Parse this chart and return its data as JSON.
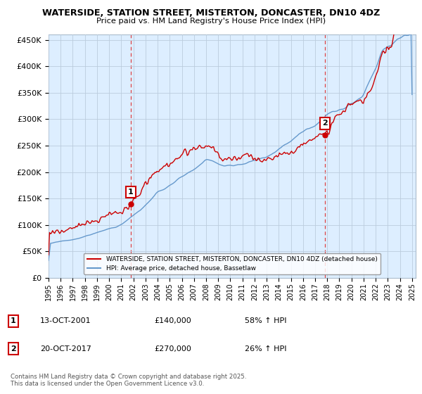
{
  "title1": "WATERSIDE, STATION STREET, MISTERTON, DONCASTER, DN10 4DZ",
  "title2": "Price paid vs. HM Land Registry's House Price Index (HPI)",
  "ylabel_ticks": [
    0,
    50000,
    100000,
    150000,
    200000,
    250000,
    300000,
    350000,
    400000,
    450000
  ],
  "ylim": [
    0,
    460000
  ],
  "x_start_year": 1995,
  "x_end_year": 2025,
  "sale1_year": 2001.79,
  "sale1_price": 140000,
  "sale1_pct": "58%",
  "sale1_date": "13-OCT-2001",
  "sale2_year": 2017.79,
  "sale2_price": 270000,
  "sale2_pct": "26%",
  "sale2_date": "20-OCT-2017",
  "legend_label_red": "WATERSIDE, STATION STREET, MISTERTON, DONCASTER, DN10 4DZ (detached house)",
  "legend_label_blue": "HPI: Average price, detached house, Bassetlaw",
  "footer": "Contains HM Land Registry data © Crown copyright and database right 2025.\nThis data is licensed under the Open Government Licence v3.0.",
  "red_color": "#cc0000",
  "blue_color": "#6699cc",
  "vline_color": "#dd4444",
  "bg_plot_color": "#ddeeff",
  "background_color": "#ffffff",
  "grid_color": "#bbccdd"
}
